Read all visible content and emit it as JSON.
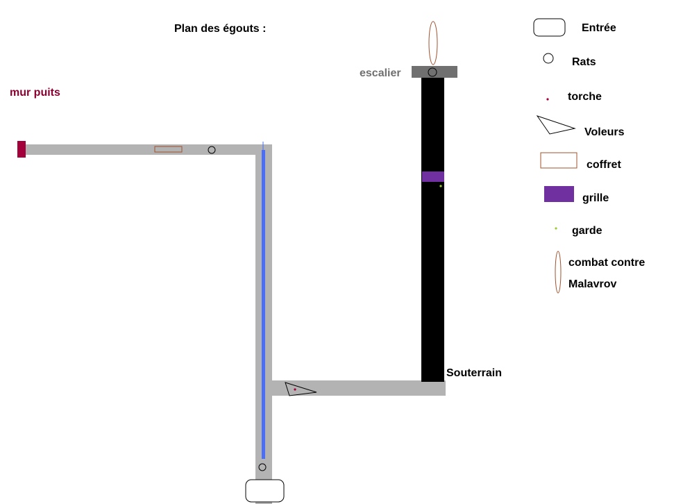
{
  "title": "Plan  des  égouts  :",
  "map": {
    "labels": {
      "wall_well": "mur  puits",
      "stairs": "escalier",
      "underground": "Souterrain"
    }
  },
  "legend": {
    "entrance": "Entrée",
    "rats": "Rats",
    "torch": "torche",
    "thieves": "Voleurs",
    "chest": "coffret",
    "grate": "grille",
    "guard": "garde",
    "boss_line1": "combat  contre",
    "boss_line2": "Malavrov"
  },
  "colors": {
    "corridor": "#b3b3b3",
    "dark_tunnel": "#000000",
    "water": "#4a6ef5",
    "wall": "#a3003b",
    "grate": "#7030a0",
    "stairs": "#707070",
    "chest_outline": "#a0522d",
    "guard": "#9acd32",
    "torch": "#a3003b",
    "title_text": "#000000",
    "wall_label": "#8b0030",
    "stairs_label": "#707070"
  }
}
